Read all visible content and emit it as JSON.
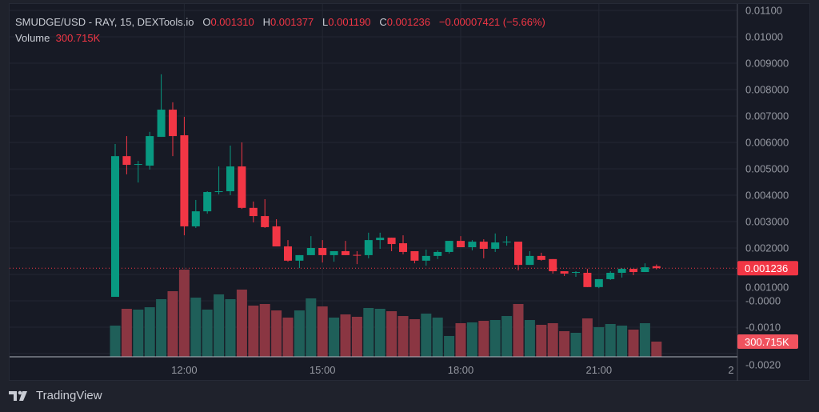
{
  "legend": {
    "symbol": "SMUDGE/USD - RAY, 15, DEXTools.io",
    "open_label": "O",
    "open": "0.001310",
    "high_label": "H",
    "high": "0.001377",
    "low_label": "L",
    "low": "0.001190",
    "close_label": "C",
    "close": "0.001236",
    "change": "−0.00007421 (−5.66%)",
    "volume_label": "Volume",
    "volume": "300.715K"
  },
  "price_axis": {
    "ticks": [
      "0.01100",
      "0.01000",
      "0.009000",
      "0.008000",
      "0.007000",
      "0.006000",
      "0.005000",
      "0.004000",
      "0.003000",
      "0.002000",
      "0.001000",
      "-0.0000",
      "-0.0010",
      "-0.0020"
    ],
    "last_price_label": "0.001236",
    "last_volume_label": "300.715K"
  },
  "time_axis": {
    "ticks": [
      "12:00",
      "15:00",
      "18:00",
      "21:00",
      "2"
    ]
  },
  "branding": {
    "name": "TradingView"
  },
  "colors": {
    "up": "#089981",
    "down": "#f23645",
    "up_volume": "#1f5f59",
    "down_volume": "#8a3642",
    "background": "#171a25"
  },
  "chart_data": {
    "type": "candlestick",
    "interval": "15",
    "x_start": "10:30",
    "price_ylim": [
      -0.002,
      0.011
    ],
    "grid": true,
    "candles": [
      [
        0.00015,
        0.00594,
        0.00015,
        0.00548
      ],
      [
        0.00548,
        0.00624,
        0.00479,
        0.00515
      ],
      [
        0.00518,
        0.0053,
        0.00448,
        0.00518
      ],
      [
        0.00512,
        0.0064,
        0.00497,
        0.00624
      ],
      [
        0.00621,
        0.00858,
        0.00621,
        0.00724
      ],
      [
        0.00724,
        0.00752,
        0.00548,
        0.00624
      ],
      [
        0.00627,
        0.00697,
        0.00248,
        0.00282
      ],
      [
        0.00282,
        0.00382,
        0.00276,
        0.00339
      ],
      [
        0.00339,
        0.00415,
        0.0033,
        0.00412
      ],
      [
        0.00415,
        0.00509,
        0.00403,
        0.00415
      ],
      [
        0.00415,
        0.00588,
        0.004,
        0.00509
      ],
      [
        0.00509,
        0.006,
        0.00348,
        0.00352
      ],
      [
        0.00352,
        0.00376,
        0.00297,
        0.00321
      ],
      [
        0.00321,
        0.00385,
        0.00276,
        0.00279
      ],
      [
        0.00282,
        0.00309,
        0.00206,
        0.00206
      ],
      [
        0.00206,
        0.0023,
        0.00148,
        0.00152
      ],
      [
        0.00152,
        0.00173,
        0.00124,
        0.00173
      ],
      [
        0.00173,
        0.00245,
        0.00173,
        0.002
      ],
      [
        0.002,
        0.0023,
        0.00145,
        0.00173
      ],
      [
        0.00173,
        0.00188,
        0.00148,
        0.00188
      ],
      [
        0.00188,
        0.00227,
        0.00173,
        0.00173
      ],
      [
        0.00174,
        0.00188,
        0.00139,
        0.00173
      ],
      [
        0.00173,
        0.00258,
        0.00161,
        0.0023
      ],
      [
        0.0023,
        0.00258,
        0.00197,
        0.00239
      ],
      [
        0.00239,
        0.00239,
        0.00188,
        0.00215
      ],
      [
        0.00218,
        0.00248,
        0.00176,
        0.00185
      ],
      [
        0.00188,
        0.00188,
        0.00142,
        0.00152
      ],
      [
        0.00152,
        0.00194,
        0.00133,
        0.0017
      ],
      [
        0.0017,
        0.00191,
        0.00158,
        0.00185
      ],
      [
        0.00185,
        0.00227,
        0.00179,
        0.00227
      ],
      [
        0.00227,
        0.00245,
        0.00203,
        0.00203
      ],
      [
        0.00203,
        0.0023,
        0.00191,
        0.00224
      ],
      [
        0.00224,
        0.00233,
        0.00161,
        0.00197
      ],
      [
        0.00197,
        0.00255,
        0.00185,
        0.00221
      ],
      [
        0.00223,
        0.00245,
        0.00209,
        0.00224
      ],
      [
        0.00224,
        0.00224,
        0.00115,
        0.00136
      ],
      [
        0.00136,
        0.00188,
        0.00136,
        0.0017
      ],
      [
        0.0017,
        0.00182,
        0.00152,
        0.00155
      ],
      [
        0.00158,
        0.00158,
        0.00103,
        0.00112
      ],
      [
        0.00112,
        0.00112,
        0.00094,
        0.00103
      ],
      [
        0.00108,
        0.00112,
        0.00091,
        0.00109
      ],
      [
        0.00106,
        0.00121,
        0.00052,
        0.00052
      ],
      [
        0.00052,
        0.00082,
        0.00048,
        0.00082
      ],
      [
        0.00082,
        0.00112,
        0.00079,
        0.00106
      ],
      [
        0.00106,
        0.00124,
        0.00088,
        0.00121
      ],
      [
        0.00121,
        0.00121,
        0.00097,
        0.00109
      ],
      [
        0.00109,
        0.00142,
        0.00109,
        0.00127
      ],
      [
        0.00131,
        0.001377,
        0.00119,
        0.001236
      ]
    ],
    "candle_fields": [
      "open",
      "high",
      "low",
      "close"
    ],
    "volume_k": [
      617,
      950,
      934,
      981,
      1140,
      1298,
      1725,
      1171,
      934,
      1235,
      1140,
      1330,
      1013,
      1045,
      918,
      776,
      918,
      1156,
      997,
      776,
      839,
      792,
      966,
      950,
      902,
      807,
      744,
      855,
      776,
      412,
      665,
      681,
      712,
      728,
      807,
      1045,
      728,
      633,
      665,
      507,
      475,
      760,
      586,
      649,
      617,
      538,
      665,
      300.715
    ]
  }
}
